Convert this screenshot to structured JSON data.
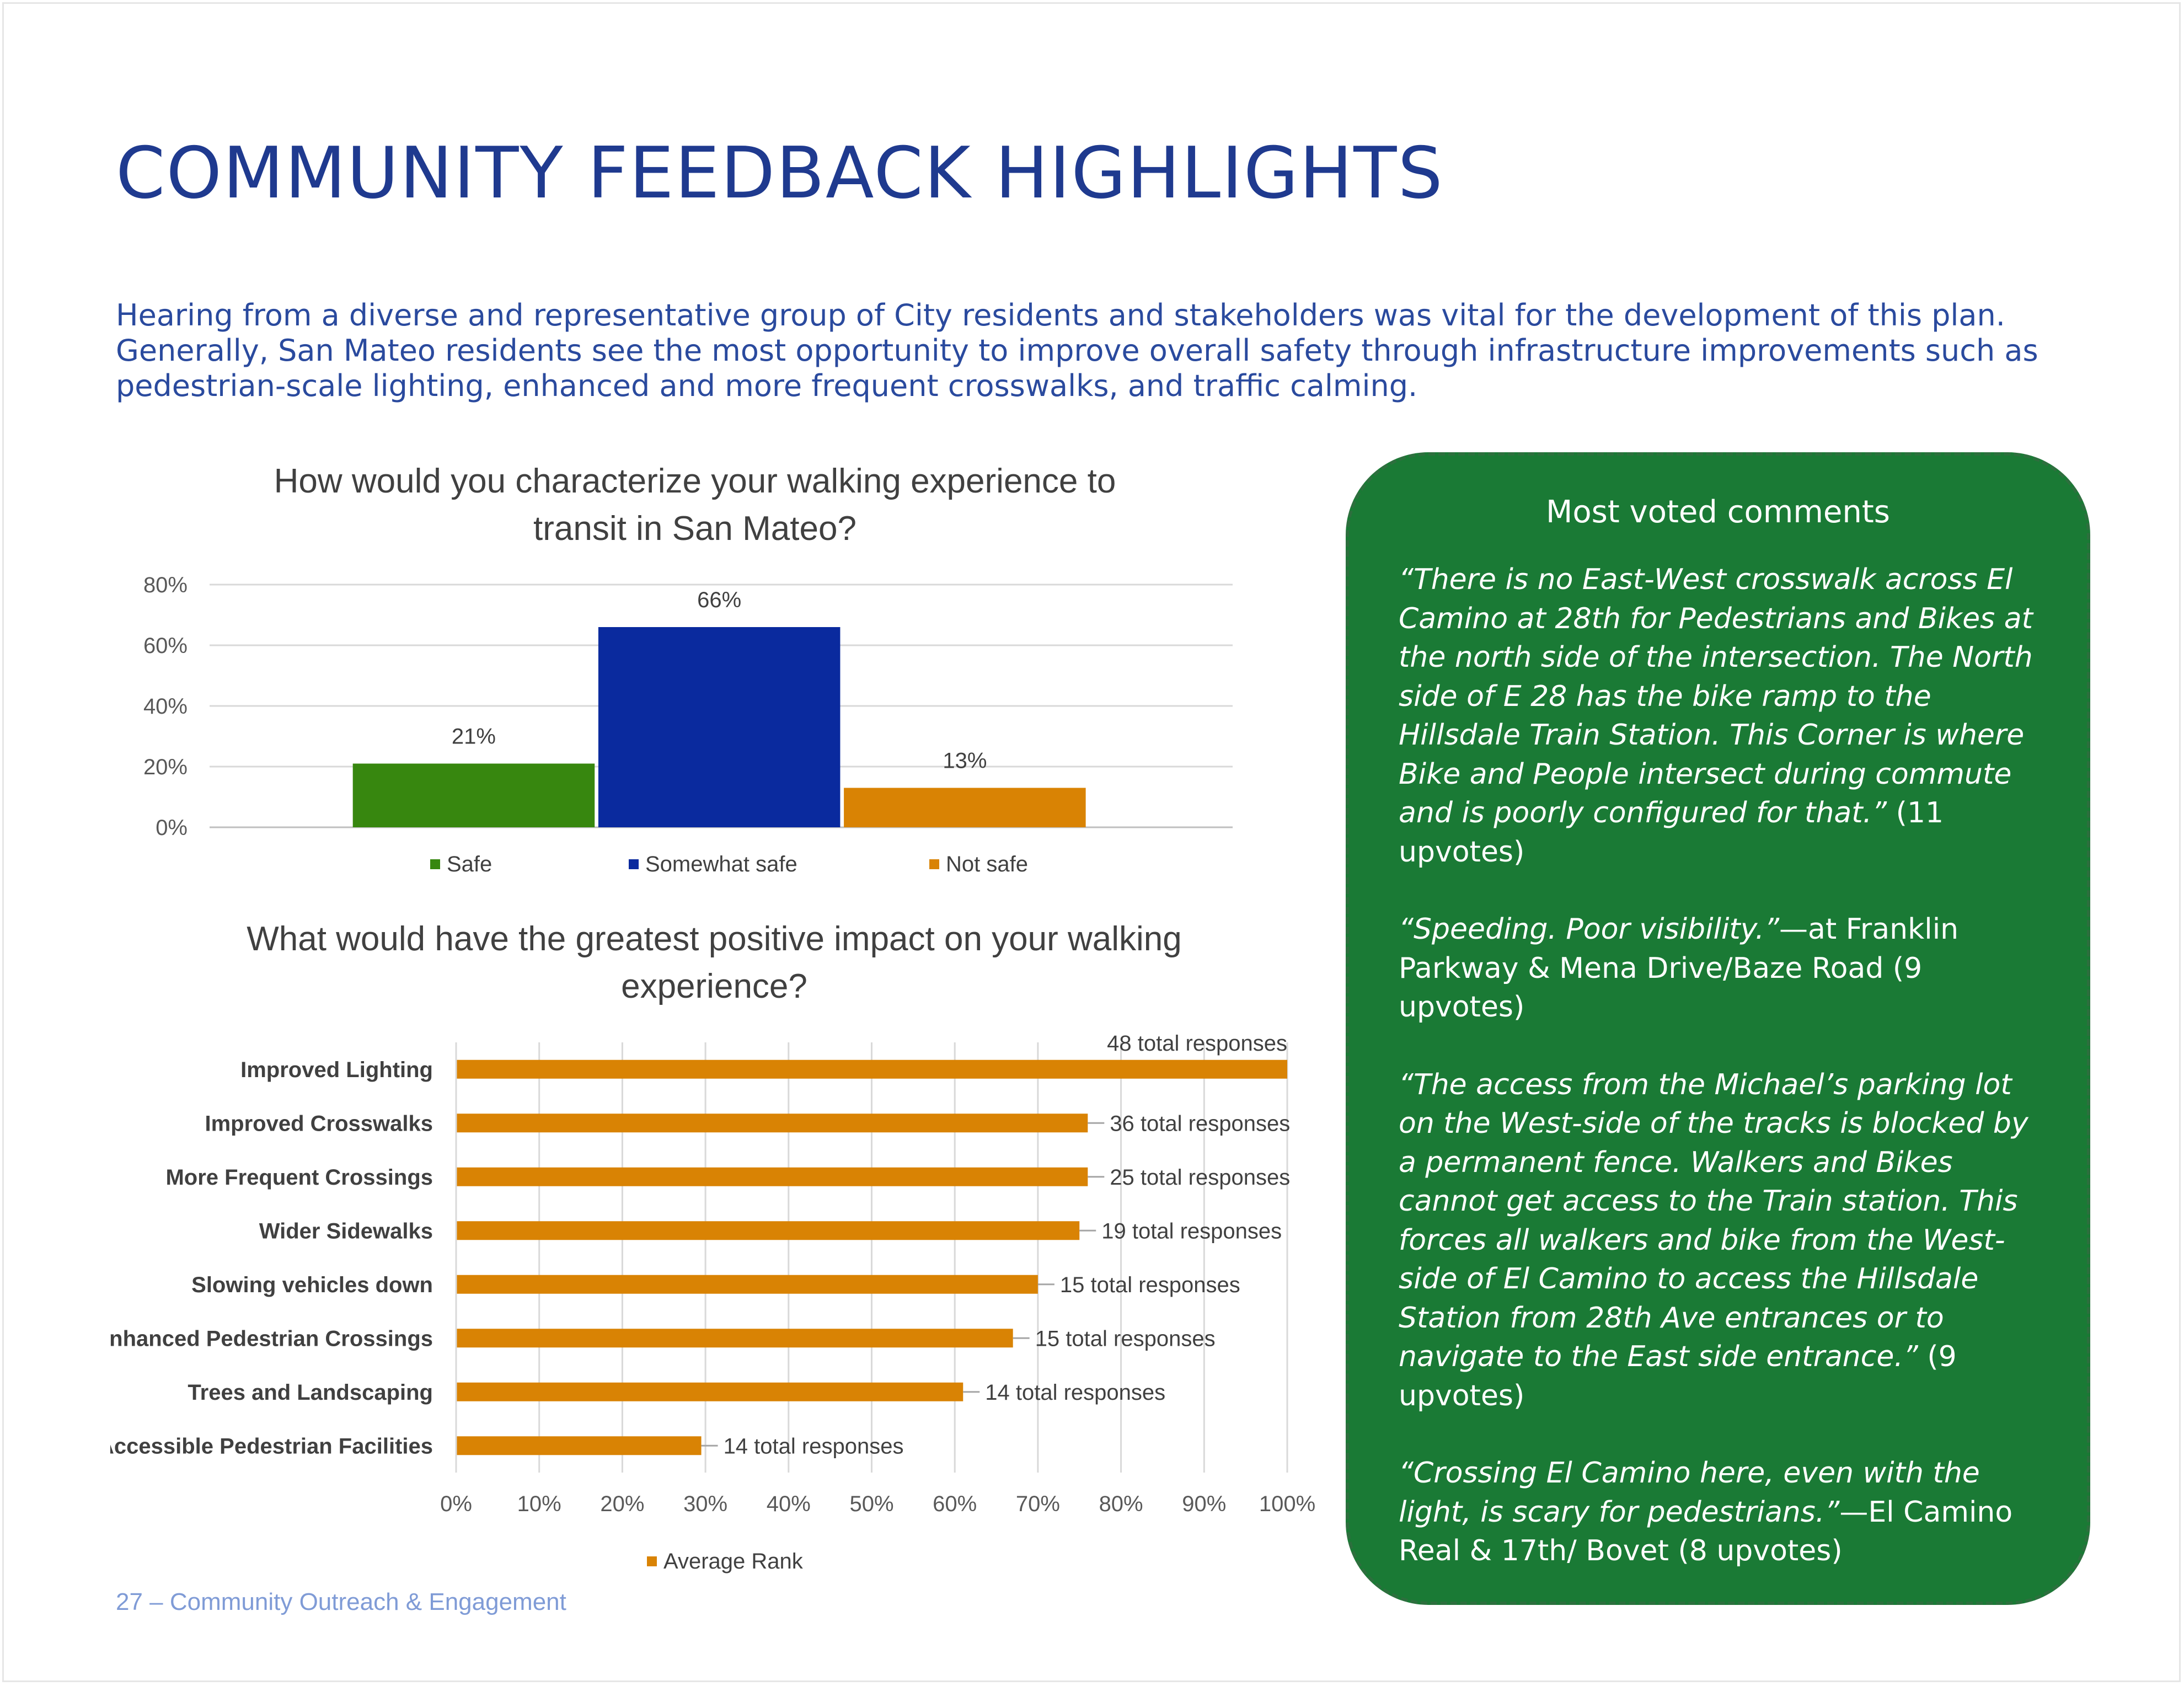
{
  "page": {
    "title": "COMMUNITY FEEDBACK HIGHLIGHTS",
    "intro": "Hearing from a diverse and representative group of City residents and stakeholders was vital for the development of this plan. Generally, San Mateo residents see the most opportunity to improve overall safety through infrastructure improvements such as pedestrian-scale lighting, enhanced and more frequent crosswalks, and traffic calming.",
    "footer": "27 – Community Outreach & Engagement"
  },
  "chart_data": [
    {
      "type": "bar",
      "title": "How would you characterize your walking experience to transit in San Mateo?",
      "title_lines": [
        "How would you characterize your walking experience to",
        "transit in San Mateo?"
      ],
      "categories": [
        "Safe",
        "Somewhat safe",
        "Not safe"
      ],
      "values": [
        21,
        66,
        13
      ],
      "value_labels": [
        "21%",
        "66%",
        "13%"
      ],
      "colors": [
        "#37870f",
        "#0a2a9e",
        "#d98304"
      ],
      "yticks": [
        "0%",
        "20%",
        "40%",
        "60%",
        "80%"
      ],
      "ylim": [
        0,
        80
      ],
      "grid": true,
      "legend": "bottom"
    },
    {
      "type": "bar",
      "orientation": "horizontal",
      "title": "What would have the greatest positive impact on your walking experience?",
      "title_lines": [
        "What would have the greatest positive impact on your walking",
        "experience?"
      ],
      "categories": [
        "Improved Lighting",
        "Improved Crosswalks",
        "More Frequent Crossings",
        "Wider Sidewalks",
        "Slowing vehicles down",
        "Enhanced Pedestrian Crossings",
        "Trees and Landscaping",
        "Accessible Pedestrian Facilities"
      ],
      "values": [
        100,
        76,
        76,
        75,
        70,
        67,
        61,
        29.5
      ],
      "value_labels": [
        "48 total responses",
        "36 total responses",
        "25 total responses",
        "19 total responses",
        "15 total responses",
        "15 total responses",
        "14 total responses",
        "14 total responses"
      ],
      "series_name": "Average Rank",
      "color": "#d98304",
      "xticks": [
        "0%",
        "10%",
        "20%",
        "30%",
        "40%",
        "50%",
        "60%",
        "70%",
        "80%",
        "90%",
        "100%"
      ],
      "xlim": [
        0,
        100
      ],
      "grid": true,
      "legend": "bottom"
    }
  ],
  "comments": {
    "title": "Most voted comments",
    "items": [
      {
        "quote": "“There is no East-West crosswalk across El Camino at 28th for Pedestrians and Bikes at the north side of the intersection. The North side of E 28 has the bike ramp to the Hillsdale Train Station. This Corner is where Bike and People intersect during commute and is poorly configured for that.”",
        "meta": " (11 upvotes)"
      },
      {
        "quote": "“Speeding. Poor visibility.”",
        "meta": "—at Franklin Parkway & Mena Drive/Baze Road (9 upvotes)"
      },
      {
        "quote": "“The access from the Michael’s parking lot on the West-side of the tracks is blocked by a permanent fence. Walkers and Bikes cannot get access to the Train station. This forces all walkers and bike from the West-side of El Camino to access the Hillsdale Station from 28th Ave entrances or to navigate to the East side entrance.”",
        "meta": " (9 upvotes)"
      },
      {
        "quote": "“Crossing El Camino here, even with the light, is scary for pedestrians.”",
        "meta": "—El Camino Real & 17th/ Bovet (8 upvotes)"
      }
    ]
  }
}
